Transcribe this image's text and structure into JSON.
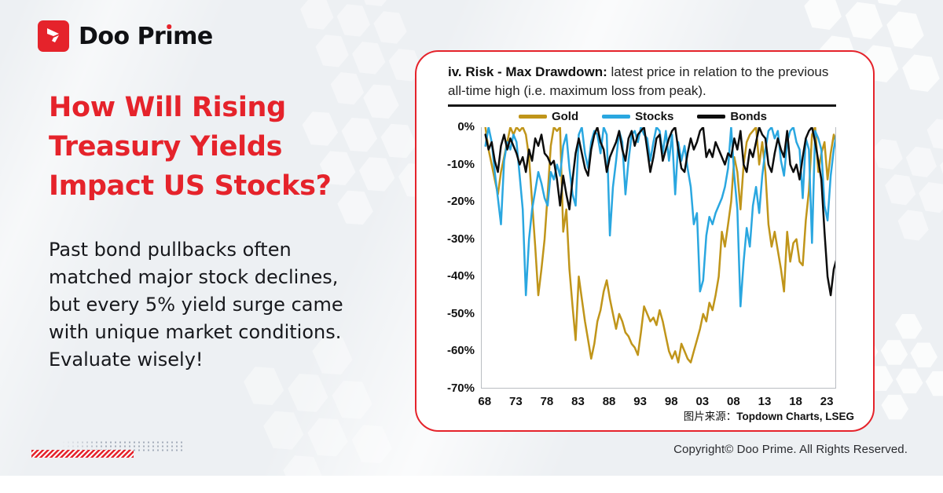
{
  "brand": {
    "name": "Doo Prime",
    "wordmark_pre": "Doo Pr",
    "wordmark_i": "ı",
    "wordmark_post": "me"
  },
  "headline_lines": [
    "How Will Rising",
    "Treasury Yields",
    "Impact US Stocks?"
  ],
  "body_lines": [
    "Past bond pullbacks often",
    "matched major stock declines,",
    "but every 5% yield surge came",
    "with unique market conditions.",
    "Evaluate wisely!"
  ],
  "card": {
    "title_bold": "iv. Risk - Max Drawdown:",
    "title_rest": " latest price in relation to the previous all-time high (i.e. maximum loss from peak).",
    "source_label": "图片来源：",
    "source_value": "Topdown Charts, LSEG"
  },
  "footer": {
    "copyright": "Copyright© Doo Prime. All Rights Reserved."
  },
  "colors": {
    "accent_red": "#e5232b",
    "gold": "#c0951a",
    "stocks_blue": "#2aa7e0",
    "bonds_black": "#0d0d0d"
  },
  "chart_data": {
    "type": "line",
    "title": "iv. Risk - Max Drawdown: latest price in relation to the previous all-time high (i.e. maximum loss from peak).",
    "source": "图片来源：Topdown Charts, LSEG",
    "legend_position": "top",
    "grid": false,
    "xlim": [
      1967.4,
      2024.5
    ],
    "ylim": [
      -70,
      0
    ],
    "y_ticks": [
      0,
      -10,
      -20,
      -30,
      -40,
      -50,
      -60,
      -70
    ],
    "y_tick_suffix": "%",
    "x_tick_values": [
      1968,
      1973,
      1978,
      1983,
      1988,
      1993,
      1998,
      2003,
      2008,
      2013,
      2018,
      2023
    ],
    "x_tick_labels": [
      "68",
      "73",
      "78",
      "83",
      "88",
      "93",
      "98",
      "03",
      "08",
      "13",
      "18",
      "23"
    ],
    "x_start": 1968,
    "x_step": 0.5,
    "x_unit": "year",
    "series": [
      {
        "name": "Gold",
        "color": "#c0951a",
        "values": [
          0,
          -6,
          -10,
          -14,
          -18,
          -12,
          -8,
          -4,
          0,
          -2,
          0,
          -1,
          0,
          -2,
          -8,
          -20,
          -32,
          -45,
          -38,
          -30,
          -18,
          -5,
          0,
          -1,
          0,
          -28,
          -22,
          -38,
          -48,
          -57,
          -40,
          -46,
          -52,
          -57,
          -62,
          -58,
          -52,
          -49,
          -44,
          -41,
          -46,
          -50,
          -54,
          -50,
          -52,
          -55,
          -56,
          -58,
          -59,
          -61,
          -55,
          -48,
          -50,
          -52,
          -51,
          -53,
          -49,
          -52,
          -56,
          -60,
          -62,
          -60,
          -63,
          -58,
          -60,
          -62,
          -63,
          -60,
          -57,
          -54,
          -50,
          -52,
          -47,
          -49,
          -45,
          -40,
          -28,
          -32,
          -26,
          -20,
          -8,
          -12,
          -22,
          -10,
          -4,
          -2,
          -1,
          0,
          -10,
          -4,
          -12,
          -26,
          -32,
          -28,
          -33,
          -38,
          -44,
          -28,
          -36,
          -31,
          -30,
          -36,
          -37,
          -25,
          -17,
          -2,
          0,
          -12,
          -7,
          -4,
          -14,
          -7,
          -2,
          -5
        ]
      },
      {
        "name": "Stocks",
        "color": "#2aa7e0",
        "values": [
          -5,
          0,
          -4,
          -12,
          -19,
          -26,
          -9,
          -4,
          -6,
          -2,
          -4,
          -13,
          -22,
          -45,
          -30,
          -22,
          -17,
          -12,
          -15,
          -19,
          -21,
          -12,
          -14,
          -10,
          -13,
          -5,
          -2,
          -11,
          -18,
          -21,
          -2,
          0,
          -7,
          -11,
          -4,
          -1,
          -2,
          -7,
          0,
          -2,
          -29,
          -16,
          -9,
          -1,
          -4,
          -18,
          -9,
          -2,
          -1,
          -4,
          0,
          -2,
          -3,
          -9,
          -4,
          0,
          -1,
          -7,
          -1,
          -9,
          -2,
          -18,
          -4,
          -9,
          -5,
          -11,
          -16,
          -26,
          -23,
          -44,
          -41,
          -29,
          -24,
          -26,
          -23,
          -21,
          -19,
          -16,
          -11,
          0,
          -13,
          -22,
          -48,
          -36,
          -27,
          -32,
          -21,
          -16,
          -23,
          -13,
          -6,
          -1,
          0,
          -3,
          -1,
          -9,
          -13,
          -4,
          -1,
          0,
          -4,
          -6,
          -19,
          -3,
          -6,
          -31,
          -1,
          -3,
          -6,
          -21,
          -25,
          -13,
          -6,
          -1
        ]
      },
      {
        "name": "Bonds",
        "color": "#0d0d0d",
        "values": [
          -2,
          -6,
          -4,
          -9,
          -12,
          -5,
          -2,
          -6,
          -3,
          -5,
          -7,
          -10,
          -8,
          -12,
          -6,
          -9,
          -3,
          -5,
          -2,
          -7,
          -8,
          -10,
          -9,
          -14,
          -21,
          -13,
          -18,
          -22,
          -14,
          -7,
          -3,
          -7,
          -11,
          -13,
          -6,
          -2,
          0,
          -4,
          -6,
          -12,
          -8,
          -6,
          -4,
          -1,
          -6,
          -9,
          -3,
          -1,
          -5,
          -2,
          -1,
          0,
          -6,
          -12,
          -8,
          -3,
          -2,
          -9,
          -6,
          -3,
          -1,
          0,
          -6,
          -11,
          -12,
          -7,
          -3,
          -6,
          -4,
          -1,
          0,
          -8,
          -6,
          -8,
          -4,
          -6,
          -8,
          -10,
          -7,
          -8,
          -3,
          -6,
          -1,
          -10,
          -12,
          -6,
          -8,
          -4,
          0,
          -2,
          -3,
          -10,
          -12,
          -7,
          -3,
          -6,
          -8,
          -1,
          -10,
          -12,
          -10,
          -14,
          -8,
          -3,
          -1,
          0,
          -4,
          -9,
          -14,
          -28,
          -40,
          -45,
          -38,
          -35
        ]
      }
    ]
  }
}
